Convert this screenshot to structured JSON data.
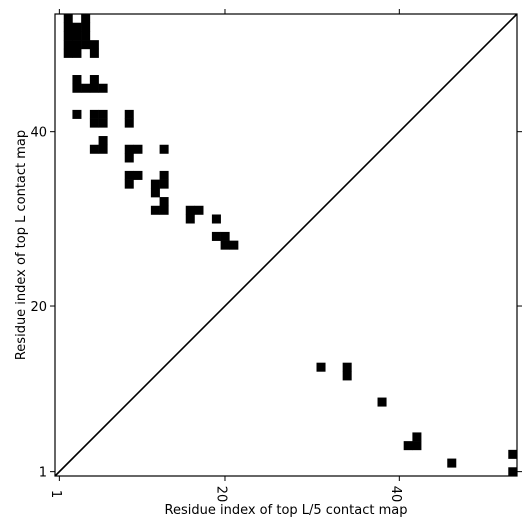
{
  "chart_data": {
    "type": "heatmap",
    "title": "",
    "xlabel": "Residue index of top L/5 contact map",
    "ylabel": "Residue index of top L contact map",
    "xlim": [
      0.5,
      53.5
    ],
    "ylim": [
      0.5,
      53.5
    ],
    "x_ticks": [
      {
        "value": 1,
        "label": "1"
      },
      {
        "value": 20,
        "label": "20"
      },
      {
        "value": 40,
        "label": "40"
      }
    ],
    "y_ticks": [
      {
        "value": 1,
        "label": "1"
      },
      {
        "value": 20,
        "label": "20"
      },
      {
        "value": 40,
        "label": "40"
      }
    ],
    "diagonal": true,
    "cell_color": "#000000",
    "background_color": "#ffffff",
    "upper_cells": [
      [
        2,
        53
      ],
      [
        4,
        53
      ],
      [
        2,
        52
      ],
      [
        3,
        52
      ],
      [
        4,
        52
      ],
      [
        2,
        51
      ],
      [
        3,
        51
      ],
      [
        4,
        51
      ],
      [
        2,
        50
      ],
      [
        3,
        50
      ],
      [
        4,
        50
      ],
      [
        5,
        50
      ],
      [
        2,
        49
      ],
      [
        3,
        49
      ],
      [
        5,
        49
      ],
      [
        3,
        46
      ],
      [
        5,
        46
      ],
      [
        3,
        45
      ],
      [
        4,
        45
      ],
      [
        5,
        45
      ],
      [
        6,
        45
      ],
      [
        3,
        42
      ],
      [
        5,
        42
      ],
      [
        6,
        42
      ],
      [
        9,
        42
      ],
      [
        5,
        41
      ],
      [
        6,
        41
      ],
      [
        9,
        41
      ],
      [
        6,
        39
      ],
      [
        5,
        38
      ],
      [
        6,
        38
      ],
      [
        9,
        38
      ],
      [
        10,
        38
      ],
      [
        13,
        38
      ],
      [
        9,
        37
      ],
      [
        9,
        35
      ],
      [
        10,
        35
      ],
      [
        13,
        35
      ],
      [
        9,
        34
      ],
      [
        12,
        34
      ],
      [
        13,
        34
      ],
      [
        12,
        33
      ],
      [
        13,
        32
      ],
      [
        12,
        31
      ],
      [
        13,
        31
      ],
      [
        16,
        31
      ],
      [
        17,
        31
      ],
      [
        16,
        30
      ],
      [
        19,
        30
      ],
      [
        19,
        28
      ],
      [
        20,
        28
      ],
      [
        20,
        27
      ],
      [
        21,
        27
      ]
    ],
    "lower_cells": [
      [
        31,
        13
      ],
      [
        34,
        13
      ],
      [
        34,
        12
      ],
      [
        38,
        9
      ],
      [
        42,
        5
      ],
      [
        41,
        4
      ],
      [
        42,
        4
      ],
      [
        53,
        3
      ],
      [
        46,
        2
      ],
      [
        53,
        1
      ]
    ]
  }
}
